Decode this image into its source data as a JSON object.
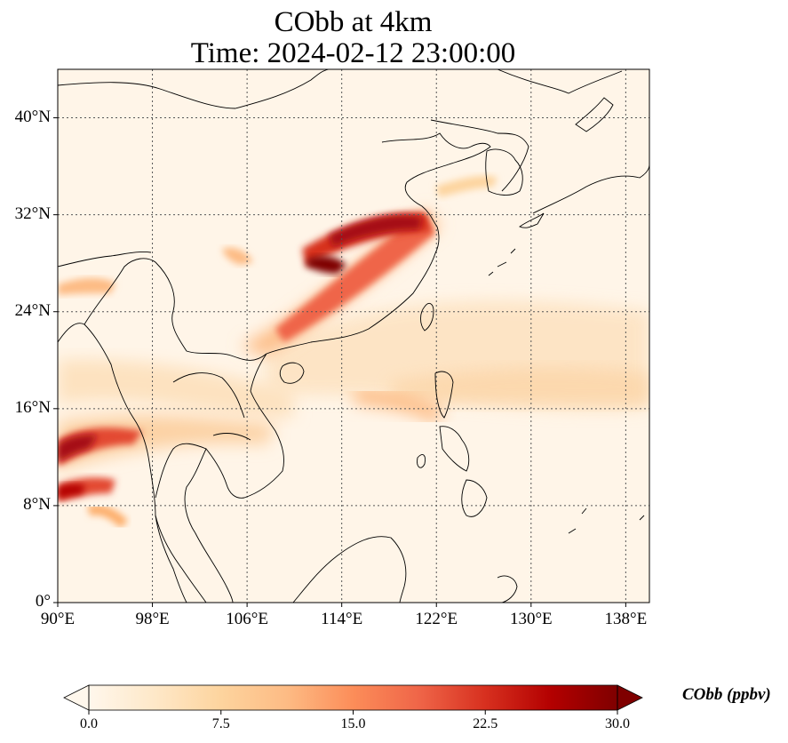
{
  "title": {
    "line1": "CObb at 4km",
    "line2": "Time: 2024-02-12 23:00:00"
  },
  "map": {
    "lon_range": [
      90,
      140
    ],
    "lat_range": [
      0,
      44
    ],
    "gridline_style": "dotted",
    "y_ticks": [
      {
        "lat": 0,
        "label": "0°"
      },
      {
        "lat": 8,
        "label": "8°N"
      },
      {
        "lat": 16,
        "label": "16°N"
      },
      {
        "lat": 24,
        "label": "24°N"
      },
      {
        "lat": 32,
        "label": "32°N"
      },
      {
        "lat": 40,
        "label": "40°N"
      }
    ],
    "x_ticks": [
      {
        "lon": 90,
        "label": "90°E"
      },
      {
        "lon": 98,
        "label": "98°E"
      },
      {
        "lon": 106,
        "label": "106°E"
      },
      {
        "lon": 114,
        "label": "114°E"
      },
      {
        "lon": 122,
        "label": "122°E"
      },
      {
        "lon": 130,
        "label": "130°E"
      },
      {
        "lon": 138,
        "label": "138°E"
      }
    ]
  },
  "colorbar": {
    "label": "CObb (ppbv)",
    "colormap": "OrRd",
    "range": [
      0,
      30
    ],
    "extend": "both",
    "ticks": [
      {
        "value": 0,
        "label": "0.0"
      },
      {
        "value": 7.5,
        "label": "7.5"
      },
      {
        "value": 15,
        "label": "15.0"
      },
      {
        "value": 22.5,
        "label": "22.5"
      },
      {
        "value": 30,
        "label": "30.0"
      }
    ],
    "colors": [
      "#fff7ec",
      "#fee8c8",
      "#fdd49e",
      "#fdbb84",
      "#fc8d59",
      "#ef6548",
      "#d7301f",
      "#b30000",
      "#7f0000"
    ]
  },
  "colors": {
    "background": "#fff5e8",
    "coastline": "#000000",
    "gridline": "#555555"
  }
}
